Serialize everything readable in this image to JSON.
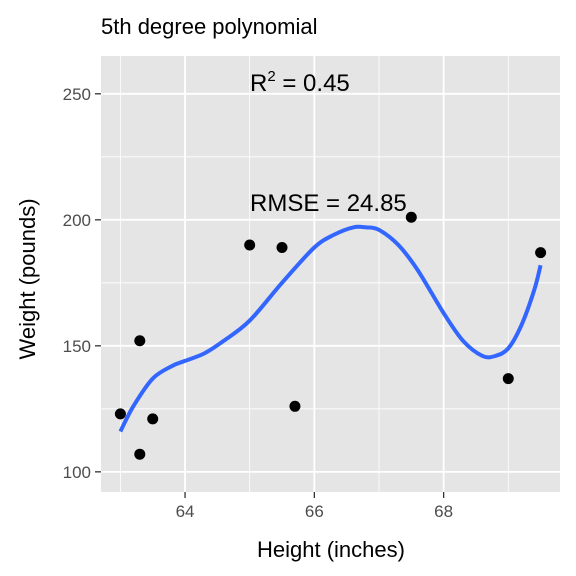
{
  "chart_data": {
    "type": "scatter",
    "title": "5th degree polynomial",
    "xlabel": "Height (inches)",
    "ylabel": "Weight (pounds)",
    "xlim": [
      62.7,
      69.8
    ],
    "ylim": [
      92,
      265
    ],
    "x_ticks": [
      64,
      66,
      68
    ],
    "x_tick_labels": [
      "64",
      "66",
      "68"
    ],
    "y_ticks": [
      100,
      150,
      200,
      250
    ],
    "y_tick_labels": [
      "100",
      "150",
      "200",
      "250"
    ],
    "grid": true,
    "points": [
      {
        "x": 63.0,
        "y": 123
      },
      {
        "x": 63.3,
        "y": 107
      },
      {
        "x": 63.3,
        "y": 152
      },
      {
        "x": 63.5,
        "y": 121
      },
      {
        "x": 65.0,
        "y": 190
      },
      {
        "x": 65.5,
        "y": 189
      },
      {
        "x": 65.7,
        "y": 126
      },
      {
        "x": 67.5,
        "y": 201
      },
      {
        "x": 69.0,
        "y": 137
      },
      {
        "x": 69.5,
        "y": 187
      }
    ],
    "fit_curve": {
      "name": "5th degree polynomial fit",
      "color": "#3366ff",
      "x": [
        63.0,
        63.2,
        63.5,
        63.8,
        64.0,
        64.3,
        64.6,
        65.0,
        65.5,
        66.0,
        66.3,
        66.6,
        66.8,
        67.0,
        67.3,
        67.6,
        68.0,
        68.3,
        68.6,
        68.8,
        69.0,
        69.2,
        69.4,
        69.5
      ],
      "y": [
        116,
        126,
        137,
        142,
        144,
        147,
        152,
        160,
        175,
        189,
        194,
        197,
        197,
        196,
        190,
        180,
        163,
        152,
        146,
        146,
        149,
        158,
        172,
        182
      ]
    },
    "annotations": {
      "r2_label": "R",
      "r2_sup": "2",
      "r2_eq": " = ",
      "r2_value": "0.45",
      "rmse_label": "RMSE = ",
      "rmse_value": "24.85"
    },
    "colors": {
      "panel_background": "#e5e5e5",
      "grid": "#ffffff",
      "point": "#000000",
      "axis_tick": "#333333"
    }
  }
}
